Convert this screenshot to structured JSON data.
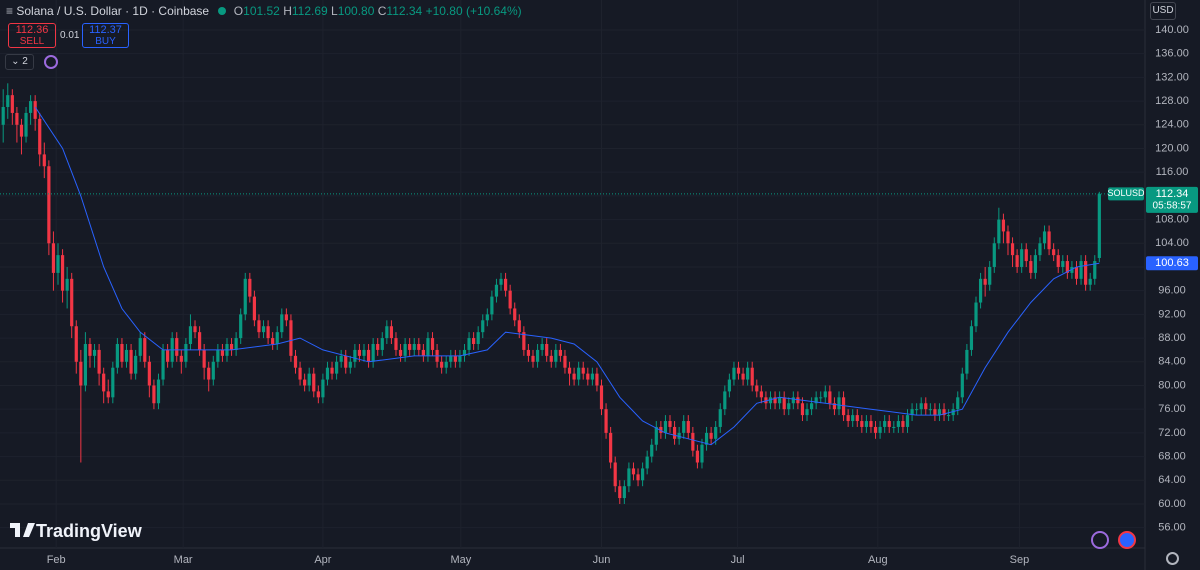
{
  "toolbar": {
    "symbol": "Solana / U.S. Dollar · 1D · Coinbase",
    "o_label": "O",
    "o": "101.52",
    "h_label": "H",
    "h": "112.69",
    "l_label": "L",
    "l": "100.80",
    "c_label": "C",
    "c": "112.34",
    "change": "+10.80 (+10.64%)",
    "sell_price": "112.36",
    "sell": "SELL",
    "spread": "0.01",
    "buy_price": "112.37",
    "buy": "BUY",
    "indicators": "2",
    "currency": "USD",
    "brand": "TradingView"
  },
  "chart_data": {
    "type": "candlestick",
    "up_color": "#089981",
    "down_color": "#f23645",
    "grid": true,
    "symbol_tag": "SOLUSD",
    "countdown": "05:58:57",
    "xlim": [
      -0.7,
      250
    ],
    "ylim": [
      52.57,
      145.06
    ],
    "xticks": [
      {
        "value": 11.6,
        "label": "Feb"
      },
      {
        "value": 39.4,
        "label": "Mar"
      },
      {
        "value": 70,
        "label": "Apr"
      },
      {
        "value": 100.2,
        "label": "May"
      },
      {
        "value": 131,
        "label": "Jun"
      },
      {
        "value": 160.8,
        "label": "Jul"
      },
      {
        "value": 191.5,
        "label": "Aug"
      },
      {
        "value": 222.5,
        "label": "Sep"
      }
    ],
    "yticks": [
      {
        "value": 140,
        "label": "140.00"
      },
      {
        "value": 136,
        "label": "136.00"
      },
      {
        "value": 132,
        "label": "132.00"
      },
      {
        "value": 128,
        "label": "128.00"
      },
      {
        "value": 124,
        "label": "124.00"
      },
      {
        "value": 120,
        "label": "120.00"
      },
      {
        "value": 116,
        "label": "116.00"
      },
      {
        "value": 112,
        "label": "112.00"
      },
      {
        "value": 108,
        "label": "108.00"
      },
      {
        "value": 104,
        "label": "104.00"
      },
      {
        "value": 100,
        "label": "100.00"
      },
      {
        "value": 96,
        "label": "96.00"
      },
      {
        "value": 92,
        "label": "92.00"
      },
      {
        "value": 88,
        "label": "88.00"
      },
      {
        "value": 84,
        "label": "84.00"
      },
      {
        "value": 80,
        "label": "80.00"
      },
      {
        "value": 76,
        "label": "76.00"
      },
      {
        "value": 72,
        "label": "72.00"
      },
      {
        "value": 68,
        "label": "68.00"
      },
      {
        "value": 64,
        "label": "64.00"
      },
      {
        "value": 60,
        "label": "60.00"
      },
      {
        "value": 56,
        "label": "56.00"
      }
    ],
    "ohlc": [
      [
        124,
        130,
        121,
        127
      ],
      [
        127,
        131,
        125,
        129
      ],
      [
        129,
        130,
        124,
        126
      ],
      [
        126,
        127,
        121,
        124
      ],
      [
        124,
        125,
        119,
        122
      ],
      [
        122,
        127,
        121,
        126
      ],
      [
        126,
        129,
        124,
        128
      ],
      [
        128,
        129,
        123,
        125
      ],
      [
        125,
        126,
        117,
        119
      ],
      [
        119,
        121,
        115,
        117
      ],
      [
        117,
        118,
        102,
        104
      ],
      [
        104,
        106,
        96,
        99
      ],
      [
        99,
        104,
        97,
        102
      ],
      [
        102,
        103,
        94,
        96
      ],
      [
        96,
        100,
        93,
        98
      ],
      [
        98,
        99,
        88,
        90
      ],
      [
        90,
        91,
        82,
        84
      ],
      [
        84,
        86,
        67,
        80
      ],
      [
        80,
        89,
        79,
        87
      ],
      [
        87,
        88,
        83,
        85
      ],
      [
        85,
        87,
        83,
        86
      ],
      [
        86,
        87,
        80,
        82
      ],
      [
        82,
        83,
        77,
        79
      ],
      [
        79,
        81,
        77,
        78
      ],
      [
        78,
        84,
        77,
        83
      ],
      [
        83,
        88,
        82,
        87
      ],
      [
        87,
        88,
        83,
        84
      ],
      [
        84,
        87,
        83,
        86
      ],
      [
        86,
        87,
        81,
        82
      ],
      [
        82,
        86,
        81,
        85
      ],
      [
        85,
        89,
        84,
        88
      ],
      [
        88,
        89,
        83,
        84
      ],
      [
        84,
        85,
        78,
        80
      ],
      [
        80,
        81,
        76,
        77
      ],
      [
        77,
        82,
        76,
        81
      ],
      [
        81,
        87,
        80,
        86
      ],
      [
        86,
        87,
        83,
        84
      ],
      [
        84,
        89,
        83,
        88
      ],
      [
        88,
        89,
        84,
        85
      ],
      [
        85,
        86,
        82,
        84
      ],
      [
        84,
        88,
        83,
        87
      ],
      [
        87,
        92,
        86,
        90
      ],
      [
        90,
        91,
        88,
        89
      ],
      [
        89,
        90,
        85,
        86
      ],
      [
        86,
        87,
        81,
        83
      ],
      [
        83,
        84,
        79,
        81
      ],
      [
        81,
        85,
        80,
        84
      ],
      [
        84,
        87,
        83,
        86
      ],
      [
        86,
        87,
        84,
        85
      ],
      [
        85,
        88,
        84,
        87
      ],
      [
        87,
        88,
        85,
        86
      ],
      [
        86,
        89,
        85,
        88
      ],
      [
        88,
        93,
        87,
        92
      ],
      [
        92,
        99,
        91,
        98
      ],
      [
        98,
        99,
        94,
        95
      ],
      [
        95,
        96,
        90,
        91
      ],
      [
        91,
        92,
        88,
        89
      ],
      [
        89,
        91,
        88,
        90
      ],
      [
        90,
        91,
        87,
        88
      ],
      [
        88,
        89,
        86,
        87
      ],
      [
        87,
        90,
        86,
        89
      ],
      [
        89,
        93,
        88,
        92
      ],
      [
        92,
        93,
        90,
        91
      ],
      [
        91,
        92,
        84,
        85
      ],
      [
        85,
        86,
        82,
        83
      ],
      [
        83,
        84,
        80,
        81
      ],
      [
        81,
        82,
        79,
        80
      ],
      [
        80,
        83,
        79,
        82
      ],
      [
        82,
        83,
        78,
        79
      ],
      [
        79,
        80,
        77,
        78
      ],
      [
        78,
        82,
        77,
        81
      ],
      [
        81,
        84,
        80,
        83
      ],
      [
        83,
        84,
        81,
        82
      ],
      [
        82,
        85,
        81,
        84
      ],
      [
        84,
        86,
        83,
        85
      ],
      [
        85,
        86,
        82,
        83
      ],
      [
        83,
        85,
        82,
        84
      ],
      [
        84,
        87,
        83,
        86
      ],
      [
        86,
        87,
        84,
        85
      ],
      [
        85,
        87,
        84,
        86
      ],
      [
        86,
        87,
        83,
        84
      ],
      [
        84,
        88,
        83,
        87
      ],
      [
        87,
        88,
        85,
        86
      ],
      [
        86,
        89,
        85,
        88
      ],
      [
        88,
        91,
        87,
        90
      ],
      [
        90,
        91,
        87,
        88
      ],
      [
        88,
        89,
        85,
        86
      ],
      [
        86,
        87,
        84,
        85
      ],
      [
        85,
        88,
        84,
        87
      ],
      [
        87,
        88,
        85,
        86
      ],
      [
        86,
        88,
        85,
        87
      ],
      [
        87,
        88,
        85,
        86
      ],
      [
        86,
        87,
        84,
        85
      ],
      [
        85,
        89,
        84,
        88
      ],
      [
        88,
        89,
        85,
        86
      ],
      [
        86,
        87,
        83,
        84
      ],
      [
        84,
        85,
        82,
        83
      ],
      [
        83,
        85,
        82,
        84
      ],
      [
        84,
        86,
        83,
        85
      ],
      [
        85,
        86,
        83,
        84
      ],
      [
        84,
        86,
        83,
        85
      ],
      [
        85,
        87,
        84,
        86
      ],
      [
        86,
        89,
        85,
        88
      ],
      [
        88,
        89,
        86,
        87
      ],
      [
        87,
        90,
        86,
        89
      ],
      [
        89,
        92,
        88,
        91
      ],
      [
        91,
        93,
        90,
        92
      ],
      [
        92,
        96,
        91,
        95
      ],
      [
        95,
        98,
        94,
        97
      ],
      [
        97,
        99,
        96,
        98
      ],
      [
        98,
        99,
        95,
        96
      ],
      [
        96,
        97,
        92,
        93
      ],
      [
        93,
        94,
        90,
        91
      ],
      [
        91,
        92,
        88,
        89
      ],
      [
        89,
        90,
        85,
        86
      ],
      [
        86,
        87,
        84,
        85
      ],
      [
        85,
        86,
        83,
        84
      ],
      [
        84,
        87,
        83,
        86
      ],
      [
        86,
        88,
        85,
        87
      ],
      [
        87,
        88,
        84,
        85
      ],
      [
        85,
        86,
        83,
        84
      ],
      [
        84,
        87,
        83,
        86
      ],
      [
        86,
        87,
        84,
        85
      ],
      [
        85,
        86,
        82,
        83
      ],
      [
        83,
        84,
        80,
        82
      ],
      [
        82,
        83,
        80,
        81
      ],
      [
        81,
        84,
        80,
        83
      ],
      [
        83,
        84,
        81,
        82
      ],
      [
        82,
        83,
        80,
        81
      ],
      [
        81,
        83,
        80,
        82
      ],
      [
        82,
        83,
        79,
        80
      ],
      [
        80,
        81,
        75,
        76
      ],
      [
        76,
        77,
        71,
        72
      ],
      [
        72,
        73,
        66,
        67
      ],
      [
        67,
        68,
        62,
        63
      ],
      [
        63,
        64,
        60,
        61
      ],
      [
        61,
        64,
        60,
        63
      ],
      [
        63,
        67,
        62,
        66
      ],
      [
        66,
        67,
        64,
        65
      ],
      [
        65,
        66,
        63,
        64
      ],
      [
        64,
        67,
        63,
        66
      ],
      [
        66,
        69,
        65,
        68
      ],
      [
        68,
        71,
        67,
        70
      ],
      [
        70,
        74,
        69,
        73
      ],
      [
        73,
        74,
        71,
        72
      ],
      [
        72,
        75,
        71,
        74
      ],
      [
        74,
        75,
        72,
        73
      ],
      [
        73,
        74,
        70,
        71
      ],
      [
        71,
        73,
        70,
        72
      ],
      [
        72,
        75,
        71,
        74
      ],
      [
        74,
        75,
        71,
        72
      ],
      [
        72,
        73,
        68,
        69
      ],
      [
        69,
        70,
        66,
        67
      ],
      [
        67,
        71,
        66,
        70
      ],
      [
        70,
        73,
        69,
        72
      ],
      [
        72,
        73,
        70,
        71
      ],
      [
        71,
        74,
        70,
        73
      ],
      [
        73,
        77,
        72,
        76
      ],
      [
        76,
        80,
        75,
        79
      ],
      [
        79,
        82,
        78,
        81
      ],
      [
        81,
        84,
        80,
        83
      ],
      [
        83,
        84,
        81,
        82
      ],
      [
        82,
        83,
        80,
        81
      ],
      [
        81,
        84,
        80,
        83
      ],
      [
        83,
        84,
        79,
        80
      ],
      [
        80,
        81,
        78,
        79
      ],
      [
        79,
        80,
        77,
        78
      ],
      [
        78,
        79,
        76,
        77
      ],
      [
        77,
        79,
        76,
        78
      ],
      [
        78,
        79,
        76,
        77
      ],
      [
        77,
        79,
        76,
        78
      ],
      [
        78,
        79,
        75,
        76
      ],
      [
        76,
        78,
        75,
        77
      ],
      [
        77,
        79,
        76,
        78
      ],
      [
        78,
        79,
        76,
        77
      ],
      [
        77,
        78,
        74,
        75
      ],
      [
        75,
        77,
        74,
        76
      ],
      [
        76,
        78,
        75,
        77
      ],
      [
        77,
        79,
        76,
        78
      ],
      [
        78,
        79,
        77,
        78
      ],
      [
        78,
        80,
        77,
        79
      ],
      [
        79,
        80,
        76,
        77
      ],
      [
        77,
        78,
        75,
        76
      ],
      [
        76,
        79,
        75,
        78
      ],
      [
        78,
        79,
        74,
        75
      ],
      [
        75,
        76,
        73,
        74
      ],
      [
        74,
        76,
        73,
        75
      ],
      [
        75,
        76,
        73,
        74
      ],
      [
        74,
        75,
        72,
        73
      ],
      [
        73,
        75,
        72,
        74
      ],
      [
        74,
        75,
        72,
        73
      ],
      [
        73,
        74,
        71,
        72
      ],
      [
        72,
        74,
        71,
        73
      ],
      [
        73,
        75,
        72,
        74
      ],
      [
        74,
        75,
        72,
        73
      ],
      [
        73,
        74,
        72,
        73
      ],
      [
        73,
        75,
        72,
        74
      ],
      [
        74,
        75,
        72,
        73
      ],
      [
        73,
        76,
        72,
        75
      ],
      [
        75,
        77,
        74,
        76
      ],
      [
        76,
        77,
        75,
        76
      ],
      [
        76,
        78,
        75,
        77
      ],
      [
        77,
        78,
        75,
        76
      ],
      [
        76,
        77,
        75,
        76
      ],
      [
        76,
        77,
        74,
        75
      ],
      [
        75,
        77,
        74,
        76
      ],
      [
        76,
        77,
        74,
        75
      ],
      [
        75,
        76,
        74,
        75
      ],
      [
        75,
        77,
        74,
        76
      ],
      [
        76,
        79,
        75,
        78
      ],
      [
        78,
        83,
        77,
        82
      ],
      [
        82,
        87,
        81,
        86
      ],
      [
        86,
        91,
        85,
        90
      ],
      [
        90,
        95,
        89,
        94
      ],
      [
        94,
        99,
        93,
        98
      ],
      [
        98,
        100,
        95,
        97
      ],
      [
        97,
        101,
        96,
        100
      ],
      [
        100,
        105,
        99,
        104
      ],
      [
        104,
        110,
        103,
        108
      ],
      [
        108,
        109,
        104,
        106
      ],
      [
        106,
        107,
        102,
        104
      ],
      [
        104,
        105,
        100,
        102
      ],
      [
        102,
        103,
        99,
        100
      ],
      [
        100,
        104,
        99,
        103
      ],
      [
        103,
        104,
        100,
        101
      ],
      [
        101,
        102,
        98,
        99
      ],
      [
        99,
        103,
        98,
        102
      ],
      [
        102,
        105,
        101,
        104
      ],
      [
        104,
        107,
        103,
        106
      ],
      [
        106,
        107,
        102,
        103
      ],
      [
        103,
        104,
        101,
        102
      ],
      [
        102,
        103,
        99,
        100
      ],
      [
        100,
        102,
        99,
        101
      ],
      [
        101,
        102,
        98,
        99
      ],
      [
        99,
        101,
        98,
        100
      ],
      [
        100,
        101,
        97,
        98
      ],
      [
        98,
        102,
        97,
        101
      ],
      [
        101,
        102,
        96,
        97
      ],
      [
        97,
        99,
        96,
        98
      ],
      [
        98,
        102,
        97,
        101
      ],
      [
        101.52,
        112.69,
        100.8,
        112.34
      ]
    ],
    "ma": {
      "color": "#2962ff",
      "x": [
        7,
        13,
        17,
        22,
        26,
        30,
        35,
        40,
        50,
        60,
        65,
        70,
        80,
        90,
        100,
        106,
        110,
        120,
        125,
        130,
        135,
        140,
        145,
        150,
        155,
        160,
        165,
        170,
        180,
        190,
        200,
        205,
        210,
        215,
        220,
        225,
        230,
        235,
        240
      ],
      "values": [
        127,
        120,
        112,
        100,
        93,
        89,
        86,
        86,
        86,
        87,
        88,
        86,
        84,
        85,
        85,
        86,
        89,
        88,
        87,
        84,
        78,
        74,
        72,
        71,
        70,
        73,
        77,
        78,
        77,
        76,
        75,
        75,
        76,
        83,
        89,
        94,
        98,
        100,
        100.63
      ]
    }
  }
}
